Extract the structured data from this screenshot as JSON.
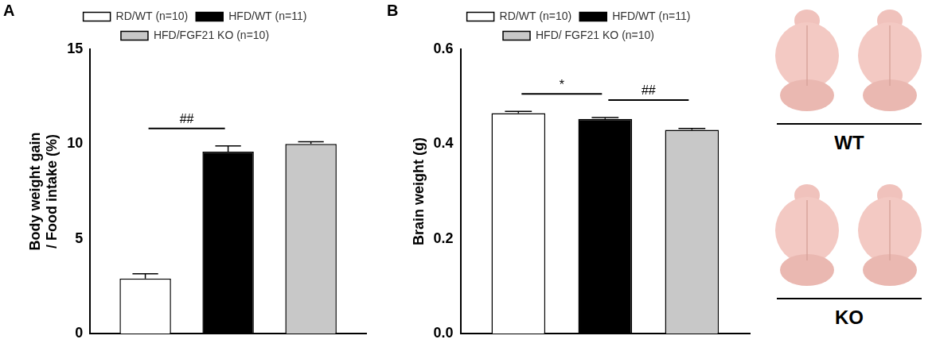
{
  "chart_data": [
    {
      "panel": "A",
      "type": "bar",
      "categories": [
        null
      ],
      "y_label": [
        "Body weight gain",
        "/ Food intake (%)"
      ],
      "series": [
        {
          "name": "RD/WT (n=10)",
          "color": "#ffffff",
          "values": [
            2.9
          ],
          "error": [
            0.25
          ]
        },
        {
          "name": "HFD/WT (n=11)",
          "color": "#000000",
          "values": [
            9.6
          ],
          "error": [
            0.3
          ]
        },
        {
          "name": "HFD/FGF21 KO (n=10)",
          "color": "#c8c8c8",
          "values": [
            10.0
          ],
          "error": [
            0.12
          ]
        }
      ],
      "ylim": [
        0,
        15
      ],
      "yticks": [
        0,
        5,
        10,
        15
      ],
      "grid": false,
      "legend": "top",
      "tick_labels": "y",
      "annotations": [
        {
          "text": "##",
          "series": [
            0,
            1
          ]
        }
      ]
    },
    {
      "panel": "B",
      "type": "bar",
      "categories": [
        null
      ],
      "y_label": [
        "Brain weight (g)"
      ],
      "series": [
        {
          "name": "RD/WT (n=10)",
          "color": "#ffffff",
          "values": [
            0.465
          ],
          "error": [
            0.004
          ]
        },
        {
          "name": "HFD/WT (n=11)",
          "color": "#000000",
          "values": [
            0.453
          ],
          "error": [
            0.003
          ]
        },
        {
          "name": "HFD/ FGF21 KO (n=10)",
          "color": "#c8c8c8",
          "values": [
            0.43
          ],
          "error": [
            0.003
          ]
        }
      ],
      "ylim": [
        0,
        0.6
      ],
      "yticks": [
        {
          "value": 0,
          "label": "0.0"
        },
        0.2,
        0.4,
        0.6
      ],
      "grid": false,
      "legend": "top",
      "tick_labels": "y",
      "annotations": [
        {
          "text": "*",
          "series": [
            0,
            1
          ]
        },
        {
          "text": "##",
          "series": [
            1,
            2
          ]
        }
      ]
    }
  ],
  "photos": [
    {
      "label": "WT"
    },
    {
      "label": "KO"
    }
  ]
}
